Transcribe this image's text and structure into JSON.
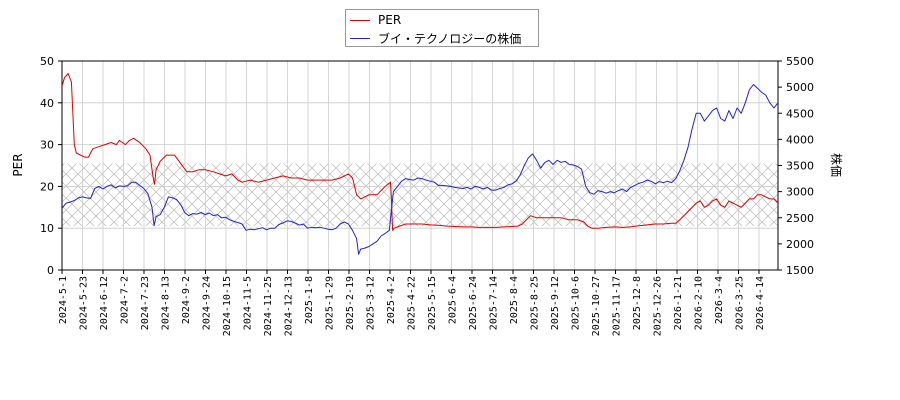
{
  "chart_data": {
    "type": "line",
    "x_ticks": [
      "2024-5-1",
      "2024-5-23",
      "2024-6-12",
      "2024-7-2",
      "2024-7-23",
      "2024-8-13",
      "2024-9-2",
      "2024-9-24",
      "2024-10-15",
      "2024-11-5",
      "2024-11-25",
      "2024-12-13",
      "2025-1-8",
      "2025-1-29",
      "2025-2-19",
      "2025-3-12",
      "2025-4-2",
      "2025-4-22",
      "2025-5-15",
      "2025-6-4",
      "2025-6-24",
      "2025-7-14",
      "2025-8-4",
      "2025-8-25",
      "2025-9-12",
      "2025-10-6",
      "2025-10-27",
      "2025-11-17",
      "2025-12-8",
      "2025-12-26",
      "2026-1-21",
      "2026-2-10",
      "2026-3-4",
      "2026-3-25",
      "2026-4-14"
    ],
    "y_left": {
      "label": "PER",
      "ticks": [
        "0",
        "10",
        "20",
        "30",
        "40",
        "50"
      ],
      "range": [
        0,
        50
      ]
    },
    "y_right": {
      "label": "株価",
      "ticks": [
        "1500",
        "2000",
        "2500",
        "3000",
        "3500",
        "4000",
        "4500",
        "5000",
        "5500"
      ],
      "range": [
        1500,
        5500
      ]
    },
    "shaded_band": {
      "axis": "left",
      "from": 10.5,
      "to": 25.5
    },
    "grid": true,
    "legend_position": "top-center",
    "series": [
      {
        "name": "PER",
        "axis": "left",
        "color": "#dd0000",
        "points": [
          [
            0,
            44
          ],
          [
            0.6,
            46
          ],
          [
            1.5,
            47
          ],
          [
            2.3,
            45
          ],
          [
            3,
            30
          ],
          [
            3.5,
            28
          ],
          [
            4.5,
            27.5
          ],
          [
            5.5,
            27
          ],
          [
            6.5,
            27
          ],
          [
            7.5,
            29
          ],
          [
            9,
            29.5
          ],
          [
            10.5,
            30
          ],
          [
            12,
            30.5
          ],
          [
            13.3,
            30
          ],
          [
            14,
            31
          ],
          [
            15.5,
            30
          ],
          [
            16.5,
            31
          ],
          [
            17.5,
            31.5
          ],
          [
            19,
            30.5
          ],
          [
            20.5,
            29
          ],
          [
            21.5,
            27.5
          ],
          [
            22.3,
            22
          ],
          [
            22.6,
            20.5
          ],
          [
            23,
            24
          ],
          [
            24,
            26
          ],
          [
            25.5,
            27.5
          ],
          [
            27.5,
            27.5
          ],
          [
            29,
            25.5
          ],
          [
            30.5,
            23.5
          ],
          [
            32,
            23.5
          ],
          [
            33.5,
            24
          ],
          [
            35,
            24
          ],
          [
            37,
            23.5
          ],
          [
            38.5,
            23
          ],
          [
            40,
            22.5
          ],
          [
            41.5,
            23
          ],
          [
            43,
            21.5
          ],
          [
            44,
            21
          ],
          [
            46,
            21.5
          ],
          [
            48,
            21
          ],
          [
            50,
            21.5
          ],
          [
            52,
            22
          ],
          [
            54,
            22.5
          ],
          [
            56,
            22
          ],
          [
            58,
            22
          ],
          [
            60,
            21.5
          ],
          [
            62,
            21.5
          ],
          [
            64,
            21.5
          ],
          [
            66,
            21.5
          ],
          [
            68,
            22
          ],
          [
            70,
            23
          ],
          [
            71,
            22
          ],
          [
            72,
            18
          ],
          [
            73,
            17
          ],
          [
            75,
            18
          ],
          [
            77,
            18
          ],
          [
            79,
            20
          ],
          [
            80.3,
            21
          ],
          [
            80.5,
            17
          ],
          [
            80.8,
            9.5
          ],
          [
            81.2,
            10
          ],
          [
            82.5,
            10.5
          ],
          [
            84,
            11
          ],
          [
            86,
            11
          ],
          [
            88,
            11
          ],
          [
            90,
            10.8
          ],
          [
            92,
            10.7
          ],
          [
            94,
            10.5
          ],
          [
            96,
            10.4
          ],
          [
            98,
            10.3
          ],
          [
            100,
            10.3
          ],
          [
            102,
            10.2
          ],
          [
            104,
            10.2
          ],
          [
            106,
            10.2
          ],
          [
            108,
            10.3
          ],
          [
            110,
            10.4
          ],
          [
            111.5,
            10.5
          ],
          [
            112.5,
            11
          ],
          [
            113.5,
            12
          ],
          [
            114.5,
            13
          ],
          [
            116,
            12.5
          ],
          [
            118,
            12.5
          ],
          [
            120,
            12.5
          ],
          [
            122,
            12.5
          ],
          [
            124,
            12
          ],
          [
            126,
            12
          ],
          [
            127.5,
            11.5
          ],
          [
            128.5,
            10.5
          ],
          [
            129.5,
            10
          ],
          [
            131,
            10
          ],
          [
            133,
            10.2
          ],
          [
            135,
            10.3
          ],
          [
            137,
            10.2
          ],
          [
            139,
            10.3
          ],
          [
            141,
            10.6
          ],
          [
            143,
            10.8
          ],
          [
            145,
            11
          ],
          [
            147,
            11
          ],
          [
            149,
            11.2
          ],
          [
            150,
            11.2
          ],
          [
            151,
            12
          ],
          [
            152,
            13
          ],
          [
            153,
            14
          ],
          [
            154,
            15
          ],
          [
            155,
            16
          ],
          [
            156,
            16.5
          ],
          [
            157,
            15
          ],
          [
            158,
            15.5
          ],
          [
            159,
            16.5
          ],
          [
            160,
            17
          ],
          [
            161,
            15.5
          ],
          [
            162,
            15
          ],
          [
            163,
            16.5
          ],
          [
            164,
            16
          ],
          [
            165,
            15.5
          ],
          [
            166,
            15
          ],
          [
            167,
            16
          ],
          [
            168,
            17
          ],
          [
            169,
            17
          ],
          [
            170,
            18
          ],
          [
            171,
            18
          ],
          [
            172,
            17.5
          ],
          [
            173,
            17
          ],
          [
            174,
            17
          ],
          [
            175,
            16
          ]
        ]
      },
      {
        "name": "ブイ・テクノロジーの株価",
        "axis": "right",
        "color": "#2222cc",
        "points": [
          [
            0,
            2680
          ],
          [
            1,
            2780
          ],
          [
            2,
            2800
          ],
          [
            3,
            2830
          ],
          [
            4,
            2880
          ],
          [
            5,
            2900
          ],
          [
            6,
            2880
          ],
          [
            7,
            2870
          ],
          [
            8,
            3060
          ],
          [
            9,
            3100
          ],
          [
            10,
            3050
          ],
          [
            11,
            3100
          ],
          [
            12,
            3130
          ],
          [
            13,
            3070
          ],
          [
            14,
            3110
          ],
          [
            15,
            3100
          ],
          [
            16,
            3110
          ],
          [
            17,
            3180
          ],
          [
            18,
            3180
          ],
          [
            19,
            3120
          ],
          [
            20,
            3060
          ],
          [
            21,
            2960
          ],
          [
            22,
            2700
          ],
          [
            22.5,
            2350
          ],
          [
            23,
            2520
          ],
          [
            24,
            2560
          ],
          [
            25,
            2700
          ],
          [
            26,
            2900
          ],
          [
            27,
            2880
          ],
          [
            28,
            2850
          ],
          [
            29,
            2750
          ],
          [
            30,
            2600
          ],
          [
            31,
            2540
          ],
          [
            32,
            2580
          ],
          [
            33,
            2570
          ],
          [
            34,
            2600
          ],
          [
            35,
            2560
          ],
          [
            36,
            2590
          ],
          [
            37,
            2540
          ],
          [
            38,
            2560
          ],
          [
            39,
            2500
          ],
          [
            40,
            2510
          ],
          [
            41,
            2460
          ],
          [
            42,
            2430
          ],
          [
            43,
            2410
          ],
          [
            44,
            2380
          ],
          [
            45,
            2260
          ],
          [
            46,
            2280
          ],
          [
            47,
            2270
          ],
          [
            48,
            2290
          ],
          [
            49,
            2310
          ],
          [
            50,
            2270
          ],
          [
            51,
            2300
          ],
          [
            52,
            2300
          ],
          [
            53,
            2370
          ],
          [
            54,
            2400
          ],
          [
            55,
            2440
          ],
          [
            56,
            2430
          ],
          [
            57,
            2400
          ],
          [
            58,
            2360
          ],
          [
            59,
            2380
          ],
          [
            60,
            2300
          ],
          [
            61,
            2320
          ],
          [
            62,
            2310
          ],
          [
            63,
            2320
          ],
          [
            64,
            2300
          ],
          [
            65,
            2280
          ],
          [
            66,
            2270
          ],
          [
            67,
            2300
          ],
          [
            68,
            2380
          ],
          [
            69,
            2420
          ],
          [
            70,
            2380
          ],
          [
            71,
            2260
          ],
          [
            72,
            2100
          ],
          [
            72.5,
            1800
          ],
          [
            73,
            1900
          ],
          [
            74,
            1920
          ],
          [
            75,
            1950
          ],
          [
            76,
            2000
          ],
          [
            77,
            2050
          ],
          [
            78,
            2150
          ],
          [
            79,
            2200
          ],
          [
            80,
            2260
          ],
          [
            81,
            3000
          ],
          [
            82,
            3100
          ],
          [
            83,
            3200
          ],
          [
            84,
            3250
          ],
          [
            85,
            3230
          ],
          [
            86,
            3220
          ],
          [
            87,
            3260
          ],
          [
            88,
            3250
          ],
          [
            89,
            3220
          ],
          [
            90,
            3200
          ],
          [
            91,
            3180
          ],
          [
            92,
            3120
          ],
          [
            93,
            3120
          ],
          [
            94,
            3110
          ],
          [
            95,
            3100
          ],
          [
            96,
            3080
          ],
          [
            97,
            3070
          ],
          [
            98,
            3060
          ],
          [
            99,
            3080
          ],
          [
            100,
            3050
          ],
          [
            101,
            3100
          ],
          [
            102,
            3080
          ],
          [
            103,
            3050
          ],
          [
            104,
            3080
          ],
          [
            105,
            3030
          ],
          [
            106,
            3030
          ],
          [
            107,
            3060
          ],
          [
            108,
            3080
          ],
          [
            109,
            3130
          ],
          [
            110,
            3150
          ],
          [
            111,
            3200
          ],
          [
            112,
            3320
          ],
          [
            113,
            3500
          ],
          [
            114,
            3650
          ],
          [
            115,
            3720
          ],
          [
            116,
            3600
          ],
          [
            117,
            3450
          ],
          [
            118,
            3560
          ],
          [
            119,
            3600
          ],
          [
            120,
            3520
          ],
          [
            121,
            3600
          ],
          [
            122,
            3560
          ],
          [
            123,
            3580
          ],
          [
            124,
            3520
          ],
          [
            125,
            3510
          ],
          [
            126,
            3480
          ],
          [
            127,
            3430
          ],
          [
            128,
            3100
          ],
          [
            129,
            2980
          ],
          [
            130,
            2950
          ],
          [
            131,
            3020
          ],
          [
            132,
            3000
          ],
          [
            133,
            2970
          ],
          [
            134,
            3000
          ],
          [
            135,
            2980
          ],
          [
            136,
            3020
          ],
          [
            137,
            3050
          ],
          [
            138,
            3000
          ],
          [
            139,
            3080
          ],
          [
            140,
            3120
          ],
          [
            141,
            3160
          ],
          [
            142,
            3180
          ],
          [
            143,
            3220
          ],
          [
            144,
            3200
          ],
          [
            145,
            3150
          ],
          [
            146,
            3190
          ],
          [
            147,
            3170
          ],
          [
            148,
            3200
          ],
          [
            149,
            3170
          ],
          [
            150,
            3250
          ],
          [
            151,
            3400
          ],
          [
            152,
            3600
          ],
          [
            153,
            3850
          ],
          [
            154,
            4200
          ],
          [
            155,
            4500
          ],
          [
            156,
            4500
          ],
          [
            157,
            4350
          ],
          [
            158,
            4450
          ],
          [
            159,
            4550
          ],
          [
            160,
            4600
          ],
          [
            161,
            4400
          ],
          [
            162,
            4350
          ],
          [
            163,
            4550
          ],
          [
            164,
            4400
          ],
          [
            165,
            4600
          ],
          [
            166,
            4500
          ],
          [
            167,
            4700
          ],
          [
            168,
            4950
          ],
          [
            169,
            5050
          ],
          [
            170,
            4980
          ],
          [
            171,
            4900
          ],
          [
            172,
            4850
          ],
          [
            173,
            4700
          ],
          [
            174,
            4600
          ],
          [
            175,
            4700
          ]
        ]
      }
    ]
  }
}
